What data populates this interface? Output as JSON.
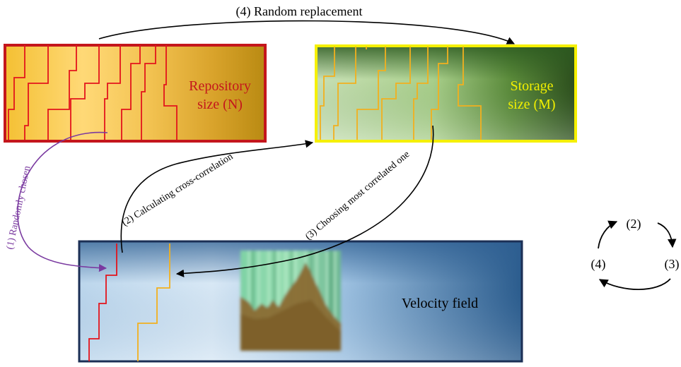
{
  "labels": {
    "random_replacement": "(4) Random replacement",
    "repository_line1": "Repository",
    "repository_line2": "size (N)",
    "storage_line1": "Storage",
    "storage_line2": "size (M)",
    "randomly_chosen": "(1) Randomly chosen",
    "cross_correlation": "(2) Calculating cross-correlation",
    "most_correlated": "(3) Choosing most correlated one",
    "velocity_field": "Velocity field",
    "cycle_2": "(2)",
    "cycle_3": "(3)",
    "cycle_4": "(4)"
  },
  "colors": {
    "repository_border": "#c4161c",
    "repository_text": "#c4161c",
    "repository_trace": "#e3141c",
    "storage_border": "#f5f000",
    "storage_text": "#f2f000",
    "storage_trace": "#f2b01e",
    "velocity_border": "#1b2f55",
    "velocity_trace_red": "#e3141c",
    "velocity_trace_orange": "#f2b01e",
    "step1_arrow": "#7a3aa0",
    "step1_text": "#7a3aa0",
    "arrow": "#000000"
  }
}
